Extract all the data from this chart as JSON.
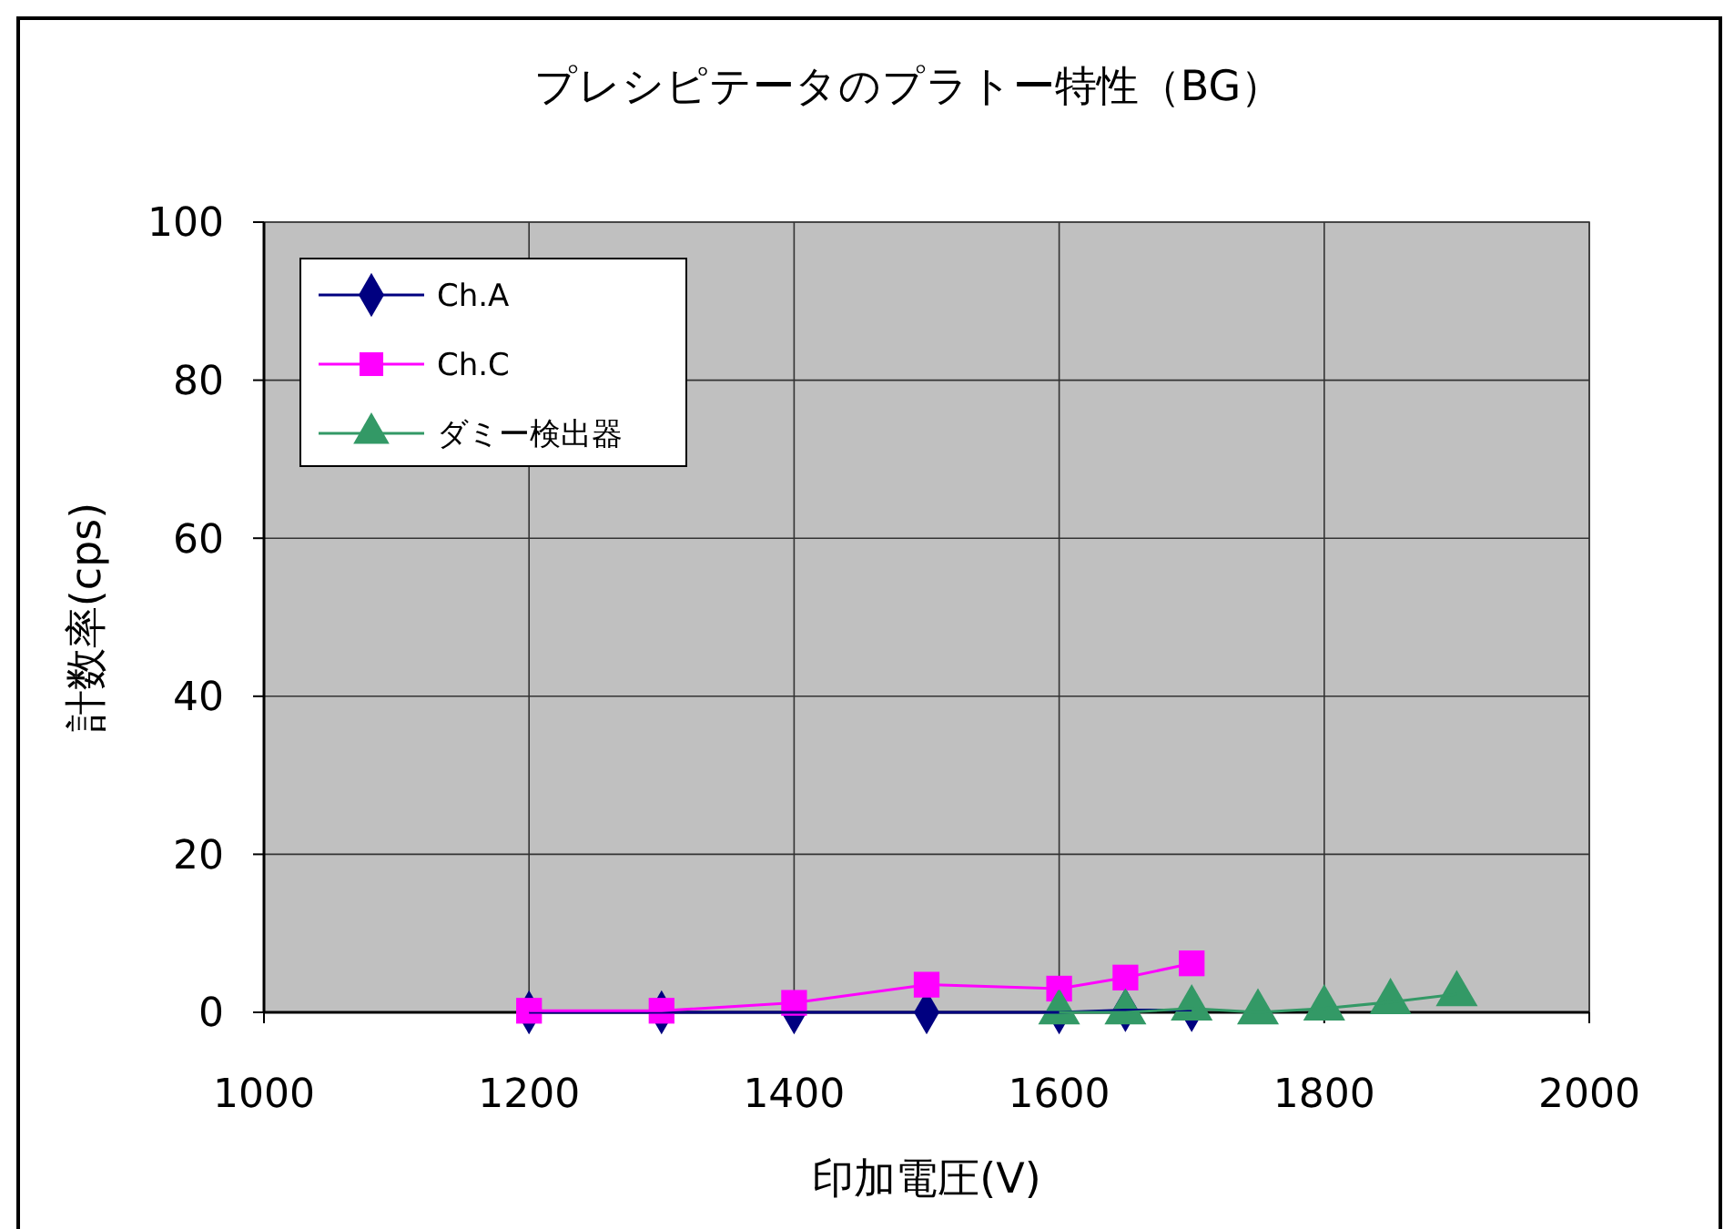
{
  "chart_data": {
    "type": "line",
    "title": "プレシピテータのプラトー特性（BG）",
    "xlabel": "印加電圧(V)",
    "ylabel": "計数率(cps)",
    "xlim": [
      1000,
      2000
    ],
    "xticks": [
      1000,
      1200,
      1400,
      1600,
      1800,
      2000
    ],
    "ylim": [
      0,
      100
    ],
    "yticks": [
      0,
      20,
      40,
      60,
      80,
      100
    ],
    "grid": true,
    "legend": "top left",
    "series": [
      {
        "name": "Ch.A",
        "color": "#000080",
        "marker": "diamond",
        "x": [
          1200,
          1300,
          1400,
          1500,
          1600,
          1650,
          1700
        ],
        "values": [
          0,
          0,
          0,
          0,
          0,
          0.3,
          0.3
        ]
      },
      {
        "name": "Ch.C",
        "color": "#ff00ff",
        "marker": "square",
        "x": [
          1200,
          1300,
          1400,
          1500,
          1600,
          1650,
          1700
        ],
        "values": [
          0.2,
          0.2,
          1.2,
          3.5,
          3,
          4.4,
          6.2
        ]
      },
      {
        "name": "ダミー検出器",
        "color": "#339966",
        "marker": "triangle",
        "x": [
          1600,
          1650,
          1700,
          1750,
          1800,
          1850,
          1900
        ],
        "values": [
          0,
          0,
          0.5,
          0,
          0.5,
          1.3,
          2.3
        ]
      }
    ]
  }
}
